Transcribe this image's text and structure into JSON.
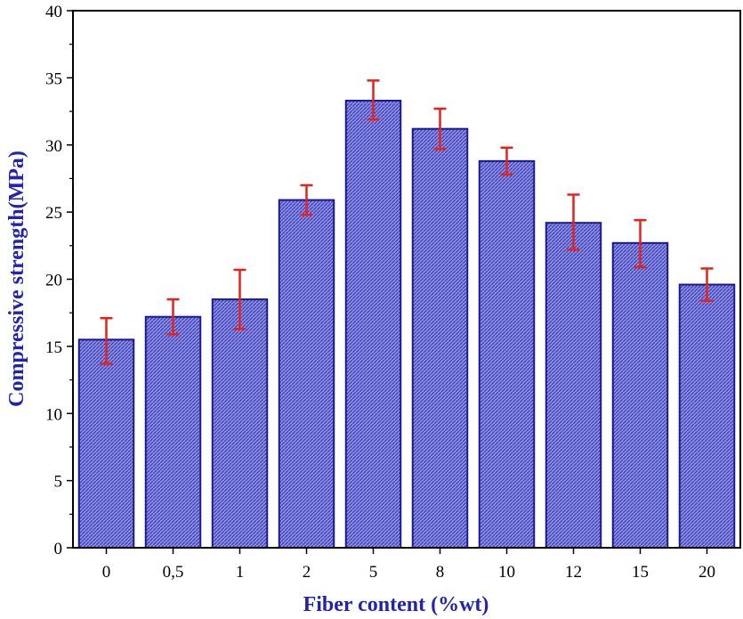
{
  "chart_data": {
    "type": "bar",
    "title": "",
    "xlabel": "Fiber content (%wt)",
    "ylabel": "Compressive strength(MPa)",
    "categories": [
      "0",
      "0,5",
      "1",
      "2",
      "5",
      "8",
      "10",
      "12",
      "15",
      "20"
    ],
    "values": [
      15.5,
      17.2,
      18.5,
      25.9,
      33.3,
      31.2,
      28.8,
      24.2,
      22.7,
      19.6
    ],
    "error_low": [
      13.7,
      15.9,
      16.3,
      24.8,
      31.9,
      29.7,
      27.8,
      22.2,
      20.9,
      18.4
    ],
    "error_high": [
      17.1,
      18.5,
      20.7,
      27.0,
      34.8,
      32.7,
      29.8,
      26.3,
      24.4,
      20.8
    ],
    "ylim": [
      0,
      40
    ],
    "yticks": [
      0,
      5,
      10,
      15,
      20,
      25,
      30,
      35,
      40
    ],
    "grid": false,
    "colors": {
      "bar_fill": "#5c5fc9",
      "bar_stroke": "#1a1a8c",
      "error_bar": "#e8201a",
      "axis_title": "#2323b0",
      "axis": "#000000"
    }
  }
}
